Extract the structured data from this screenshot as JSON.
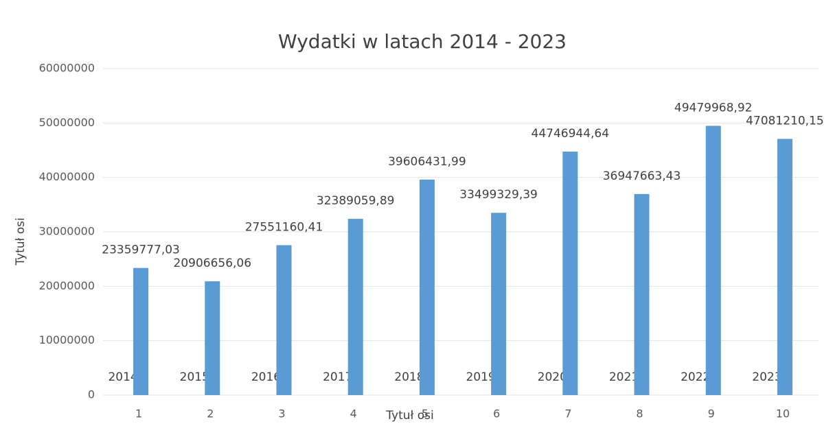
{
  "chart_data": {
    "type": "bar",
    "title": "Wydatki w latach 2014 - 2023",
    "y_label": "Tytuł osi",
    "x_label": "Tytuł osi",
    "categories": [
      "1",
      "2",
      "3",
      "4",
      "5",
      "6",
      "7",
      "8",
      "9",
      "10"
    ],
    "series": [
      {
        "color": "#5b9bd5",
        "values": [
          2014,
          2015,
          2016,
          2017,
          2018,
          2019,
          2020,
          2021,
          2022,
          2023
        ]
      },
      {
        "color": "#5b9bd5",
        "values": [
          23359777.03,
          20906656.06,
          27551160.41,
          32389059.89,
          39606431.99,
          33499329.39,
          44746944.64,
          36947663.43,
          49479968.92,
          47081210.15
        ],
        "value_labels": [
          "23359777,03",
          "20906656,06",
          "27551160,41",
          "32389059,89",
          "39606431,99",
          "33499329,39",
          "44746944,64",
          "36947663,43",
          "49479968,92",
          "47081210,15"
        ]
      }
    ],
    "ylim": [
      0,
      60000000
    ],
    "yticks": [
      0,
      10000000,
      20000000,
      30000000,
      40000000,
      50000000,
      60000000
    ],
    "grid": true
  }
}
